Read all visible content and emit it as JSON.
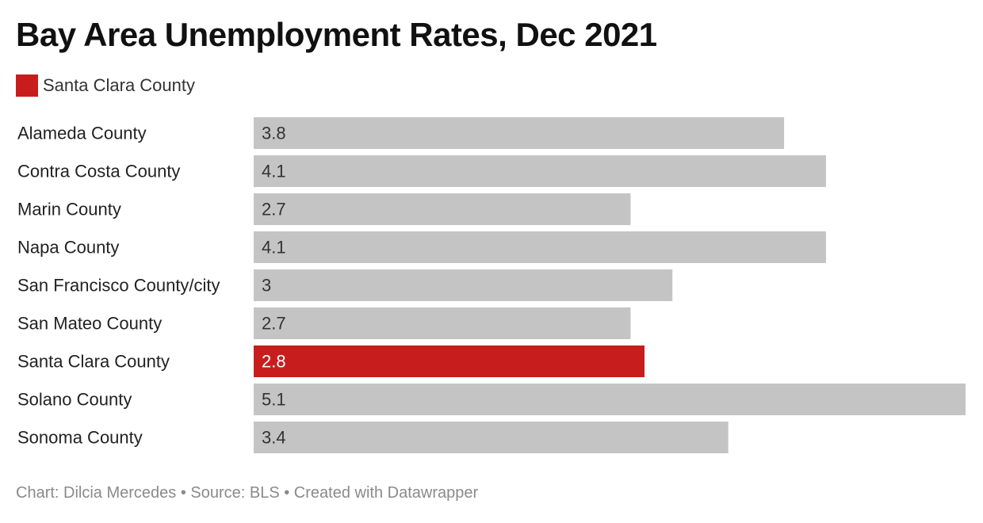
{
  "title": "Bay Area Unemployment Rates, Dec 2021",
  "legend": [
    {
      "label": "Santa Clara County",
      "color": "#c71e1d"
    }
  ],
  "colors": {
    "default_bar": "#c4c4c4",
    "highlight_bar": "#c71e1d",
    "label_on_default": "#333333",
    "label_on_highlight": "#ffffff"
  },
  "chart_data": {
    "type": "bar",
    "orientation": "horizontal",
    "categories": [
      "Alameda County",
      "Contra Costa County",
      "Marin County",
      "Napa County",
      "San Francisco County/city",
      "San Mateo County",
      "Santa Clara County",
      "Solano County",
      "Sonoma County"
    ],
    "values": [
      3.8,
      4.1,
      2.7,
      4.1,
      3,
      2.7,
      2.8,
      5.1,
      3.4
    ],
    "value_labels": [
      "3.8",
      "4.1",
      "2.7",
      "4.1",
      "3",
      "2.7",
      "2.8",
      "5.1",
      "3.4"
    ],
    "highlight": "Santa Clara County",
    "xlim": [
      0,
      5.1
    ],
    "grid": false
  },
  "footer": {
    "text": "Chart: Dilcia Mercedes • Source: BLS • Created with Datawrapper"
  }
}
